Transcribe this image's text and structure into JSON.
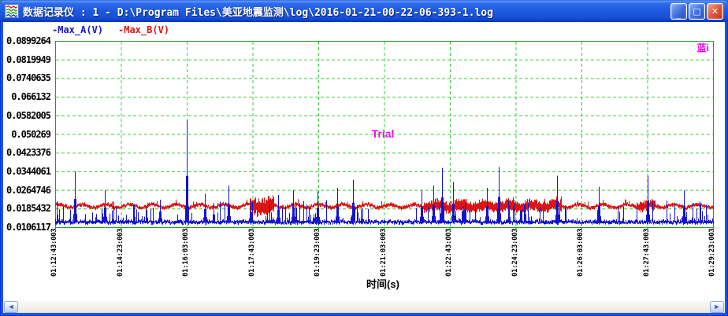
{
  "window": {
    "title": "数据记录仪 : 1 - D:\\Program Files\\美亚地震监测\\log\\2016-01-21-00-22-06-393-1.log",
    "controls": {
      "minimize": "_",
      "maximize": "□",
      "close": "✕"
    }
  },
  "colors": {
    "titlebar_blue": "#1d5ae2",
    "plot_border_green": "#1aa31a",
    "grid_green": "#3ecc3e",
    "series_a_blue": "#1414cc",
    "series_b_red": "#dc1414",
    "watermark_magenta": "#f000f0",
    "axis_text": "#000000"
  },
  "watermarks": {
    "center": "Trial",
    "corner": "蓝i"
  },
  "scrollbar": {
    "left_glyph": "◄",
    "right_glyph": "►"
  },
  "chart_data": {
    "type": "line",
    "title": "",
    "xlabel": "时间(s)",
    "ylabel": "",
    "grid": "dashed-green",
    "legend_position": "top-left",
    "ylim": [
      0.0106117,
      0.0899264
    ],
    "x_span_seconds": 1000,
    "x_tick_interval_seconds": 100,
    "x_tick_labels": [
      "01:12:43:003",
      "01:14:23:003",
      "01:16:03:003",
      "01:17:43:003",
      "01:19:23:003",
      "01:21:03:003",
      "01:22:43:003",
      "01:24:23:003",
      "01:26:03:003",
      "01:27:43:003",
      "01:29:23:003"
    ],
    "y_tick_labels": [
      "0.0899264",
      "0.0819949",
      "0.0740635",
      "0.066132",
      "0.0582005",
      "0.050269",
      "0.0423376",
      "0.0344061",
      "0.0264746",
      "0.0185432",
      "0.0106117"
    ],
    "series": [
      {
        "name": "Max_A(V)",
        "legend_label": "-Max_A(V)",
        "color": "#1414cc",
        "baseline": 0.0132,
        "noise": 0.0004,
        "minor_spike_max": 0.0225,
        "major_spikes": [
          [
            30,
            0.0345
          ],
          [
            75,
            0.0265
          ],
          [
            159,
            0.0225
          ],
          [
            200,
            0.0564
          ],
          [
            228,
            0.025
          ],
          [
            263,
            0.0285
          ],
          [
            297,
            0.022
          ],
          [
            339,
            0.0245
          ],
          [
            362,
            0.0265
          ],
          [
            399,
            0.026
          ],
          [
            429,
            0.0275
          ],
          [
            453,
            0.031
          ],
          [
            557,
            0.0265
          ],
          [
            575,
            0.0285
          ],
          [
            588,
            0.036
          ],
          [
            605,
            0.03
          ],
          [
            656,
            0.0275
          ],
          [
            674,
            0.0364
          ],
          [
            763,
            0.0327
          ],
          [
            826,
            0.028
          ],
          [
            900,
            0.0327
          ],
          [
            956,
            0.0264
          ]
        ]
      },
      {
        "name": "Max_B(V)",
        "legend_label": "-Max_B(V)",
        "color": "#dc1414",
        "baseline": 0.0198,
        "noise": 0.0009,
        "modulation_amp": 0.0007,
        "modulation_period_s": 36,
        "bursts": [
          [
            295,
            332,
            0.0032
          ],
          [
            560,
            770,
            0.0018
          ],
          [
            883,
            912,
            0.0014
          ]
        ]
      }
    ]
  }
}
